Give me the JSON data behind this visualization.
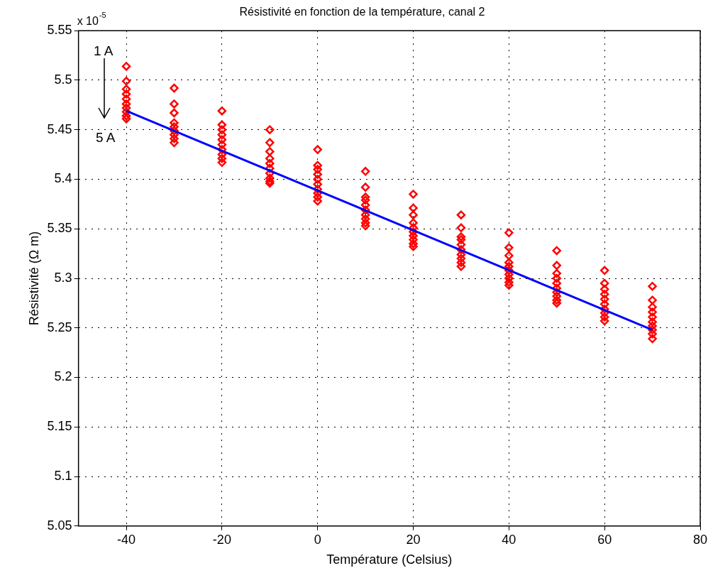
{
  "chart_data": {
    "type": "scatter",
    "title": "Résistivité en fonction de la température, canal 2",
    "xlabel": "Température (Celsius)",
    "ylabel": "Résistivité (Ω m)",
    "annotations": [
      "x 10$^{-5}$",
      "1 A",
      "5 A"
    ],
    "xlim": [
      -50,
      80
    ],
    "xticks": [
      -40,
      -20,
      0,
      20,
      40,
      60,
      80
    ],
    "ylim": [
      5.05,
      5.55
    ],
    "yticks": [
      5.05,
      5.1,
      5.15,
      5.2,
      5.25,
      5.3,
      5.35,
      5.4,
      5.45,
      5.5,
      5.55
    ],
    "grid": true,
    "legend": false,
    "marker": "diamond",
    "series": [
      {
        "color": "#ff0000",
        "x": [
          -40,
          -40,
          -40,
          -40,
          -40,
          -40,
          -40,
          -40,
          -40,
          -40,
          -30,
          -30,
          -30,
          -30,
          -30,
          -30,
          -30,
          -30,
          -30,
          -20,
          -20,
          -20,
          -20,
          -20,
          -20,
          -20,
          -20,
          -20,
          -20,
          -10,
          -10,
          -10,
          -10,
          -10,
          -10,
          -10,
          -10,
          -10,
          -10,
          0,
          0,
          0,
          0,
          0,
          0,
          0,
          0,
          0,
          0,
          10,
          10,
          10,
          10,
          10,
          10,
          10,
          10,
          10,
          10,
          20,
          20,
          20,
          20,
          20,
          20,
          20,
          20,
          20,
          20,
          30,
          30,
          30,
          30,
          30,
          30,
          30,
          30,
          30,
          30,
          40,
          40,
          40,
          40,
          40,
          40,
          40,
          40,
          40,
          40,
          50,
          50,
          50,
          50,
          50,
          50,
          50,
          50,
          50,
          50,
          60,
          60,
          60,
          60,
          60,
          60,
          60,
          60,
          60,
          60,
          70,
          70,
          70,
          70,
          70,
          70,
          70,
          70,
          70,
          70
        ],
        "values": [
          5.514,
          5.499,
          5.491,
          5.486,
          5.481,
          5.476,
          5.472,
          5.468,
          5.464,
          5.461,
          5.492,
          5.476,
          5.467,
          5.457,
          5.453,
          5.449,
          5.445,
          5.441,
          5.437,
          5.469,
          5.455,
          5.45,
          5.445,
          5.44,
          5.435,
          5.43,
          5.425,
          5.421,
          5.417,
          5.45,
          5.437,
          5.428,
          5.421,
          5.416,
          5.411,
          5.406,
          5.401,
          5.398,
          5.396,
          5.43,
          5.414,
          5.41,
          5.405,
          5.4,
          5.395,
          5.39,
          5.386,
          5.382,
          5.378,
          5.408,
          5.392,
          5.382,
          5.379,
          5.374,
          5.369,
          5.364,
          5.36,
          5.356,
          5.353,
          5.385,
          5.371,
          5.364,
          5.356,
          5.351,
          5.347,
          5.343,
          5.339,
          5.335,
          5.332,
          5.364,
          5.351,
          5.342,
          5.339,
          5.334,
          5.329,
          5.324,
          5.32,
          5.316,
          5.312,
          5.346,
          5.331,
          5.323,
          5.316,
          5.312,
          5.308,
          5.304,
          5.3,
          5.296,
          5.293,
          5.328,
          5.313,
          5.305,
          5.3,
          5.295,
          5.29,
          5.286,
          5.282,
          5.278,
          5.275,
          5.308,
          5.295,
          5.289,
          5.284,
          5.279,
          5.274,
          5.269,
          5.265,
          5.261,
          5.257,
          5.292,
          5.278,
          5.271,
          5.266,
          5.261,
          5.256,
          5.252,
          5.248,
          5.244,
          5.239
        ]
      },
      {
        "type": "line",
        "color": "#0000ff",
        "marker": "none",
        "line_style": "solid",
        "x": [
          -40,
          70
        ],
        "values": [
          5.469,
          5.248
        ]
      }
    ]
  }
}
